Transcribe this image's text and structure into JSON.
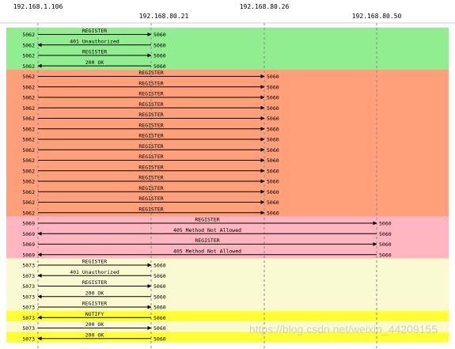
{
  "diagram": {
    "hosts": [
      {
        "ip": "192.168.1.106"
      },
      {
        "ip": "192.168.80.21"
      },
      {
        "ip": "192.168.80.26"
      },
      {
        "ip": "192.168.80.50"
      }
    ],
    "messages": [
      {
        "from": 0,
        "to": 1,
        "label": "REGISTER",
        "src_port": "5062",
        "dst_port": "5060",
        "group": "green"
      },
      {
        "from": 1,
        "to": 0,
        "label": "401 Unauthorized",
        "src_port": "5062",
        "dst_port": "5060",
        "group": "green"
      },
      {
        "from": 0,
        "to": 1,
        "label": "REGISTER",
        "src_port": "5062",
        "dst_port": "5060",
        "group": "green"
      },
      {
        "from": 1,
        "to": 0,
        "label": "200 OK",
        "src_port": "5062",
        "dst_port": "5060",
        "group": "green"
      },
      {
        "from": 0,
        "to": 2,
        "label": "REGISTER",
        "src_port": "5062",
        "dst_port": "5060",
        "group": "orange"
      },
      {
        "from": 0,
        "to": 2,
        "label": "REGISTER",
        "src_port": "5062",
        "dst_port": "5060",
        "group": "orange"
      },
      {
        "from": 0,
        "to": 2,
        "label": "REGISTER",
        "src_port": "5062",
        "dst_port": "5060",
        "group": "orange"
      },
      {
        "from": 0,
        "to": 2,
        "label": "REGISTER",
        "src_port": "5062",
        "dst_port": "5060",
        "group": "orange"
      },
      {
        "from": 0,
        "to": 2,
        "label": "REGISTER",
        "src_port": "5062",
        "dst_port": "5060",
        "group": "orange"
      },
      {
        "from": 0,
        "to": 2,
        "label": "REGISTER",
        "src_port": "5062",
        "dst_port": "5060",
        "group": "orange"
      },
      {
        "from": 0,
        "to": 2,
        "label": "REGISTER",
        "src_port": "5062",
        "dst_port": "5060",
        "group": "orange"
      },
      {
        "from": 0,
        "to": 2,
        "label": "REGISTER",
        "src_port": "5062",
        "dst_port": "5060",
        "group": "orange"
      },
      {
        "from": 0,
        "to": 2,
        "label": "REGISTER",
        "src_port": "5062",
        "dst_port": "5060",
        "group": "orange"
      },
      {
        "from": 0,
        "to": 2,
        "label": "REGISTER",
        "src_port": "5062",
        "dst_port": "5060",
        "group": "orange"
      },
      {
        "from": 0,
        "to": 2,
        "label": "REGISTER",
        "src_port": "5062",
        "dst_port": "5060",
        "group": "orange"
      },
      {
        "from": 0,
        "to": 2,
        "label": "REGISTER",
        "src_port": "5062",
        "dst_port": "5060",
        "group": "orange"
      },
      {
        "from": 0,
        "to": 2,
        "label": "REGISTER",
        "src_port": "5062",
        "dst_port": "5060",
        "group": "orange"
      },
      {
        "from": 0,
        "to": 2,
        "label": "REGISTER",
        "src_port": "5062",
        "dst_port": "5060",
        "group": "orange"
      },
      {
        "from": 0,
        "to": 3,
        "label": "REGISTER",
        "src_port": "5069",
        "dst_port": "5060",
        "group": "pink"
      },
      {
        "from": 3,
        "to": 0,
        "label": "405 Method Not Allowed",
        "src_port": "5069",
        "dst_port": "5060",
        "group": "pink"
      },
      {
        "from": 0,
        "to": 3,
        "label": "REGISTER",
        "src_port": "5069",
        "dst_port": "5060",
        "group": "pink"
      },
      {
        "from": 3,
        "to": 0,
        "label": "405 Method Not Allowed",
        "src_port": "5069",
        "dst_port": "5060",
        "group": "pink"
      },
      {
        "from": 0,
        "to": 1,
        "label": "REGISTER",
        "src_port": "5073",
        "dst_port": "5060",
        "group": "pale"
      },
      {
        "from": 1,
        "to": 0,
        "label": "401 Unauthorized",
        "src_port": "5073",
        "dst_port": "5060",
        "group": "pale"
      },
      {
        "from": 0,
        "to": 1,
        "label": "REGISTER",
        "src_port": "5073",
        "dst_port": "5060",
        "group": "pale"
      },
      {
        "from": 1,
        "to": 0,
        "label": "200 OK",
        "src_port": "5073",
        "dst_port": "5060",
        "group": "pale"
      },
      {
        "from": 0,
        "to": 1,
        "label": "REGISTER",
        "src_port": "5073",
        "dst_port": "5060",
        "group": "pale"
      },
      {
        "from": 1,
        "to": 0,
        "label": "NOTIFY",
        "src_port": "5073",
        "dst_port": "5060",
        "group": "yellow"
      },
      {
        "from": 0,
        "to": 1,
        "label": "200 OK",
        "src_port": "5073",
        "dst_port": "5060",
        "group": "pale"
      },
      {
        "from": 1,
        "to": 0,
        "label": "200 OK",
        "src_port": "5073",
        "dst_port": "5060",
        "group": "yellow"
      }
    ],
    "colors": {
      "green": "#90ee90",
      "orange": "#ffa07a",
      "pink": "#ffb6c1",
      "pale": "#fafad2",
      "yellow": "#ffff33",
      "line": "#000000",
      "lifeline": "#888888"
    }
  },
  "watermark": "https://blog.csdn.net/weixin_44209155"
}
